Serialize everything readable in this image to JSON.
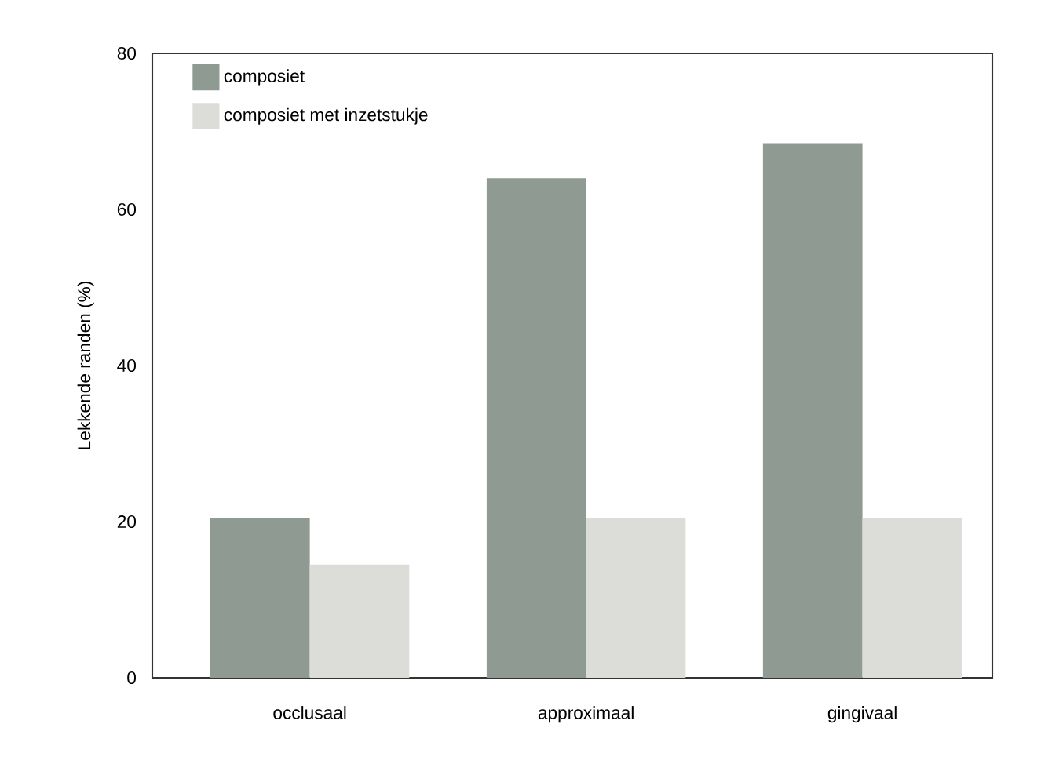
{
  "chart_data": {
    "type": "bar",
    "ylabel": "Lekkende randen (%)",
    "categories": [
      "occlusaal",
      "approximaal",
      "gingivaal"
    ],
    "series": [
      {
        "name": "composiet",
        "color": "#8f9a92",
        "values": [
          20.5,
          64,
          68.5
        ]
      },
      {
        "name": "composiet met inzetstukje",
        "color": "#dcdcd8",
        "values": [
          14.5,
          20.5,
          20.5
        ]
      }
    ],
    "ylim": [
      0,
      80
    ],
    "yticks": [
      0,
      20,
      40,
      60,
      80
    ],
    "grid": false,
    "legend": "top left"
  }
}
